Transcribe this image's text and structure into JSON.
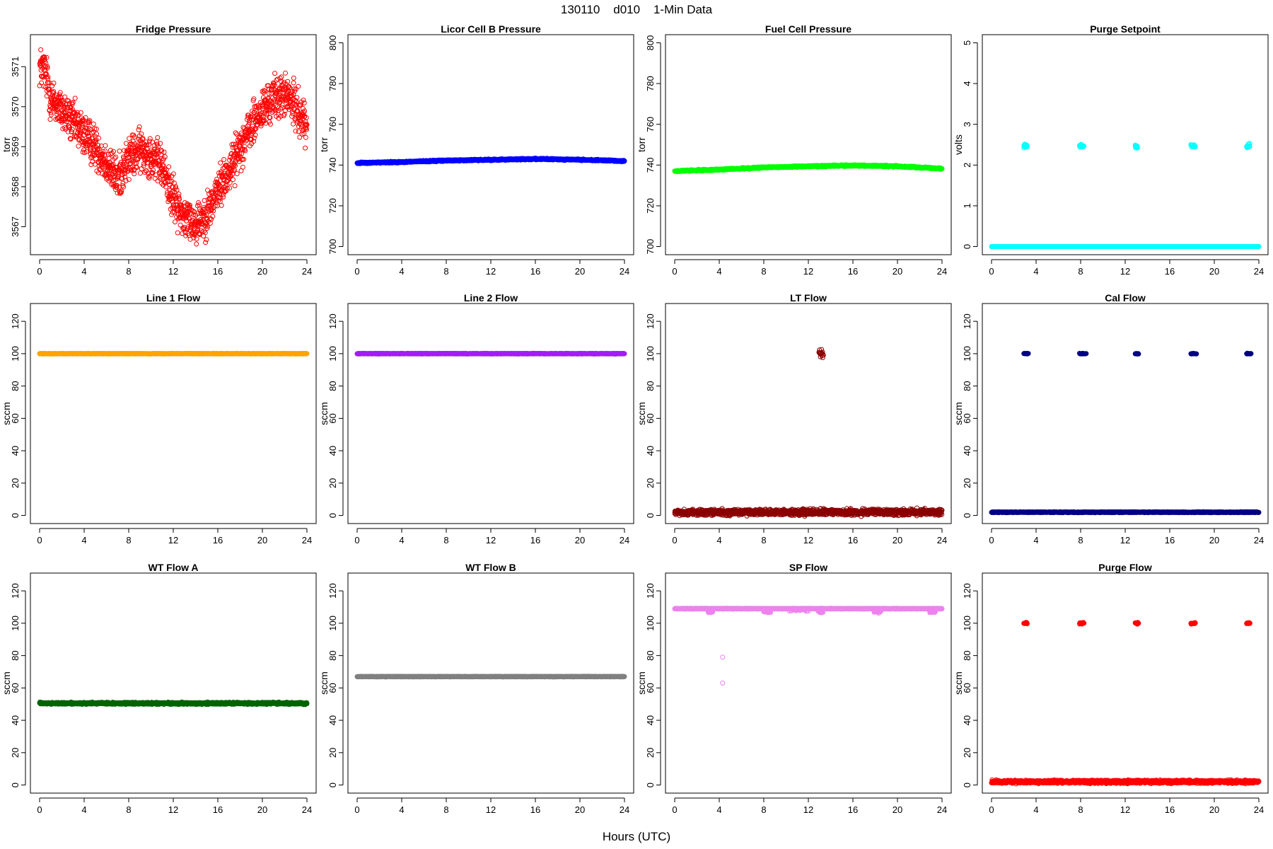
{
  "figure": {
    "title": "130110    d010    1-Min Data",
    "xlabel": "Hours (UTC)"
  },
  "chart_data": [
    {
      "type": "scatter",
      "title": "Fridge Pressure",
      "ylabel": "torr",
      "color": "#ff0000",
      "xlim": [
        0,
        24
      ],
      "ylim": [
        3566.3,
        3571.8
      ],
      "xticks": [
        0,
        4,
        8,
        12,
        16,
        20,
        24
      ],
      "yticks": [
        3567,
        3568,
        3569,
        3570,
        3571
      ],
      "rotate_ytick_labels": true,
      "series": [
        {
          "trend_x": [
            0,
            0.5,
            1,
            2,
            3,
            4,
            5,
            6,
            7,
            8,
            9,
            10,
            11,
            12,
            13,
            14,
            15,
            16,
            17,
            18,
            19,
            20,
            21,
            22,
            23,
            24
          ],
          "trend_y": [
            3571.0,
            3570.9,
            3570.2,
            3569.9,
            3569.6,
            3569.3,
            3569.0,
            3568.6,
            3568.2,
            3568.7,
            3568.9,
            3568.8,
            3568.5,
            3567.7,
            3567.2,
            3567.1,
            3567.3,
            3567.9,
            3568.4,
            3569.0,
            3569.5,
            3569.9,
            3570.2,
            3570.3,
            3570.0,
            3569.5
          ],
          "spread": 0.45,
          "count": 1440
        }
      ]
    },
    {
      "type": "scatter",
      "title": "Licor Cell B Pressure",
      "ylabel": "torr",
      "color": "#0000ff",
      "xlim": [
        0,
        24
      ],
      "ylim": [
        696,
        804
      ],
      "xticks": [
        0,
        4,
        8,
        12,
        16,
        20,
        24
      ],
      "yticks": [
        700,
        720,
        740,
        760,
        780,
        800
      ],
      "rotate_ytick_labels": true,
      "series": [
        {
          "trend_x": [
            0,
            4,
            8,
            12,
            16,
            20,
            24
          ],
          "trend_y": [
            741,
            741.5,
            742.2,
            742.6,
            743.0,
            742.6,
            742.0
          ],
          "spread": 0.3,
          "count": 1440
        }
      ]
    },
    {
      "type": "scatter",
      "title": "Fuel Cell Pressure",
      "ylabel": "torr",
      "color": "#00ff00",
      "xlim": [
        0,
        24
      ],
      "ylim": [
        696,
        804
      ],
      "xticks": [
        0,
        4,
        8,
        12,
        16,
        20,
        24
      ],
      "yticks": [
        700,
        720,
        740,
        760,
        780,
        800
      ],
      "rotate_ytick_labels": true,
      "series": [
        {
          "trend_x": [
            0,
            4,
            8,
            12,
            16,
            20,
            24
          ],
          "trend_y": [
            737,
            737.8,
            738.8,
            739.4,
            739.8,
            739.4,
            738.3
          ],
          "spread": 0.3,
          "count": 1440
        }
      ]
    },
    {
      "type": "scatter",
      "title": "Purge Setpoint",
      "ylabel": "volts",
      "color": "#00ffff",
      "xlim": [
        0,
        24
      ],
      "ylim": [
        -0.2,
        5.2
      ],
      "xticks": [
        0,
        4,
        8,
        12,
        16,
        20,
        24
      ],
      "yticks": [
        0,
        1,
        2,
        3,
        4,
        5
      ],
      "rotate_ytick_labels": true,
      "series": [
        {
          "trend_x": [
            0,
            24
          ],
          "trend_y": [
            0,
            0
          ],
          "spread": 0,
          "count": 1440
        },
        {
          "clusters": [
            {
              "x": [
                2.9,
                3.2
              ],
              "y": 2.47
            },
            {
              "x": [
                7.9,
                8.3
              ],
              "y": 2.47
            },
            {
              "x": [
                12.9,
                13.1
              ],
              "y": 2.45
            },
            {
              "x": [
                17.9,
                18.3
              ],
              "y": 2.47
            },
            {
              "x": [
                22.9,
                23.2
              ],
              "y": 2.47
            }
          ],
          "spread": 0.04,
          "count_per": 14
        }
      ]
    },
    {
      "type": "scatter",
      "title": "Line 1 Flow",
      "ylabel": "sccm",
      "color": "#ffa500",
      "xlim": [
        0,
        24
      ],
      "ylim": [
        -5,
        131
      ],
      "xticks": [
        0,
        4,
        8,
        12,
        16,
        20,
        24
      ],
      "yticks": [
        0,
        20,
        40,
        60,
        80,
        100,
        120
      ],
      "rotate_ytick_labels": true,
      "series": [
        {
          "trend_x": [
            0,
            24
          ],
          "trend_y": [
            100,
            100
          ],
          "spread": 0.15,
          "count": 1440
        }
      ]
    },
    {
      "type": "scatter",
      "title": "Line 2 Flow",
      "ylabel": "sccm",
      "color": "#a020f0",
      "xlim": [
        0,
        24
      ],
      "ylim": [
        -5,
        131
      ],
      "xticks": [
        0,
        4,
        8,
        12,
        16,
        20,
        24
      ],
      "yticks": [
        0,
        20,
        40,
        60,
        80,
        100,
        120
      ],
      "rotate_ytick_labels": true,
      "series": [
        {
          "trend_x": [
            0,
            24
          ],
          "trend_y": [
            100,
            100
          ],
          "spread": 0.15,
          "count": 1440
        }
      ]
    },
    {
      "type": "scatter",
      "title": "LT Flow",
      "ylabel": "sccm",
      "color": "#8b0000",
      "xlim": [
        0,
        24
      ],
      "ylim": [
        -5,
        131
      ],
      "xticks": [
        0,
        4,
        8,
        12,
        16,
        20,
        24
      ],
      "yticks": [
        0,
        20,
        40,
        60,
        80,
        100,
        120
      ],
      "rotate_ytick_labels": true,
      "series": [
        {
          "trend_x": [
            0,
            24
          ],
          "trend_y": [
            2,
            2
          ],
          "spread": 1.6,
          "count": 1440
        },
        {
          "clusters": [
            {
              "x": [
                12.95,
                13.35
              ],
              "y": 100
            }
          ],
          "spread": 2.0,
          "count_per": 16
        }
      ]
    },
    {
      "type": "scatter",
      "title": "Cal Flow",
      "ylabel": "sccm",
      "color": "#000080",
      "xlim": [
        0,
        24
      ],
      "ylim": [
        -5,
        131
      ],
      "xticks": [
        0,
        4,
        8,
        12,
        16,
        20,
        24
      ],
      "yticks": [
        0,
        20,
        40,
        60,
        80,
        100,
        120
      ],
      "rotate_ytick_labels": true,
      "series": [
        {
          "trend_x": [
            0,
            24
          ],
          "trend_y": [
            2,
            2
          ],
          "spread": 0.2,
          "count": 1440
        },
        {
          "clusters": [
            {
              "x": [
                2.9,
                3.3
              ],
              "y": 100
            },
            {
              "x": [
                7.9,
                8.5
              ],
              "y": 100
            },
            {
              "x": [
                12.9,
                13.2
              ],
              "y": 100
            },
            {
              "x": [
                17.9,
                18.4
              ],
              "y": 100
            },
            {
              "x": [
                22.9,
                23.3
              ],
              "y": 100
            }
          ],
          "spread": 0.2,
          "count_per": 14
        }
      ]
    },
    {
      "type": "scatter",
      "title": "WT Flow A",
      "ylabel": "sccm",
      "color": "#006400",
      "xlim": [
        0,
        24
      ],
      "ylim": [
        -5,
        131
      ],
      "xticks": [
        0,
        4,
        8,
        12,
        16,
        20,
        24
      ],
      "yticks": [
        0,
        20,
        40,
        60,
        80,
        100,
        120
      ],
      "rotate_ytick_labels": true,
      "series": [
        {
          "trend_x": [
            0,
            24
          ],
          "trend_y": [
            50.5,
            50.5
          ],
          "spread": 0.5,
          "count": 1440
        }
      ]
    },
    {
      "type": "scatter",
      "title": "WT Flow B",
      "ylabel": "sccm",
      "color": "#808080",
      "xlim": [
        0,
        24
      ],
      "ylim": [
        -5,
        131
      ],
      "xticks": [
        0,
        4,
        8,
        12,
        16,
        20,
        24
      ],
      "yticks": [
        0,
        20,
        40,
        60,
        80,
        100,
        120
      ],
      "rotate_ytick_labels": true,
      "series": [
        {
          "trend_x": [
            0,
            24
          ],
          "trend_y": [
            67,
            67
          ],
          "spread": 0.15,
          "count": 1440
        }
      ]
    },
    {
      "type": "scatter",
      "title": "SP Flow",
      "ylabel": "sccm",
      "color": "#ee82ee",
      "xlim": [
        0,
        24
      ],
      "ylim": [
        -5,
        131
      ],
      "xticks": [
        0,
        4,
        8,
        12,
        16,
        20,
        24
      ],
      "yticks": [
        0,
        20,
        40,
        60,
        80,
        100,
        120
      ],
      "rotate_ytick_labels": true,
      "series": [
        {
          "trend_x": [
            0,
            24
          ],
          "trend_y": [
            109,
            109
          ],
          "spread": 0.2,
          "count": 1440
        },
        {
          "clusters": [
            {
              "x": [
                3.0,
                3.4
              ],
              "y": 107
            },
            {
              "x": [
                8.0,
                8.6
              ],
              "y": 107
            },
            {
              "x": [
                10.3,
                12.0
              ],
              "y": 108
            },
            {
              "x": [
                12.9,
                13.3
              ],
              "y": 107
            },
            {
              "x": [
                17.9,
                18.5
              ],
              "y": 107
            },
            {
              "x": [
                22.9,
                23.4
              ],
              "y": 107
            }
          ],
          "spread": 0.5,
          "count_per": 18
        },
        {
          "points": [
            [
              4.3,
              79
            ],
            [
              4.3,
              63
            ]
          ]
        }
      ]
    },
    {
      "type": "scatter",
      "title": "Purge Flow",
      "ylabel": "sccm",
      "color": "#ff0000",
      "xlim": [
        0,
        24
      ],
      "ylim": [
        -5,
        131
      ],
      "xticks": [
        0,
        4,
        8,
        12,
        16,
        20,
        24
      ],
      "yticks": [
        0,
        20,
        40,
        60,
        80,
        100,
        120
      ],
      "rotate_ytick_labels": true,
      "series": [
        {
          "trend_x": [
            0,
            24
          ],
          "trend_y": [
            2,
            2
          ],
          "spread": 0.8,
          "count": 1440
        },
        {
          "clusters": [
            {
              "x": [
                2.9,
                3.2
              ],
              "y": 100
            },
            {
              "x": [
                7.9,
                8.3
              ],
              "y": 100
            },
            {
              "x": [
                12.9,
                13.2
              ],
              "y": 100
            },
            {
              "x": [
                17.9,
                18.3
              ],
              "y": 100
            },
            {
              "x": [
                22.9,
                23.2
              ],
              "y": 100
            }
          ],
          "spread": 0.4,
          "count_per": 14
        }
      ]
    }
  ]
}
